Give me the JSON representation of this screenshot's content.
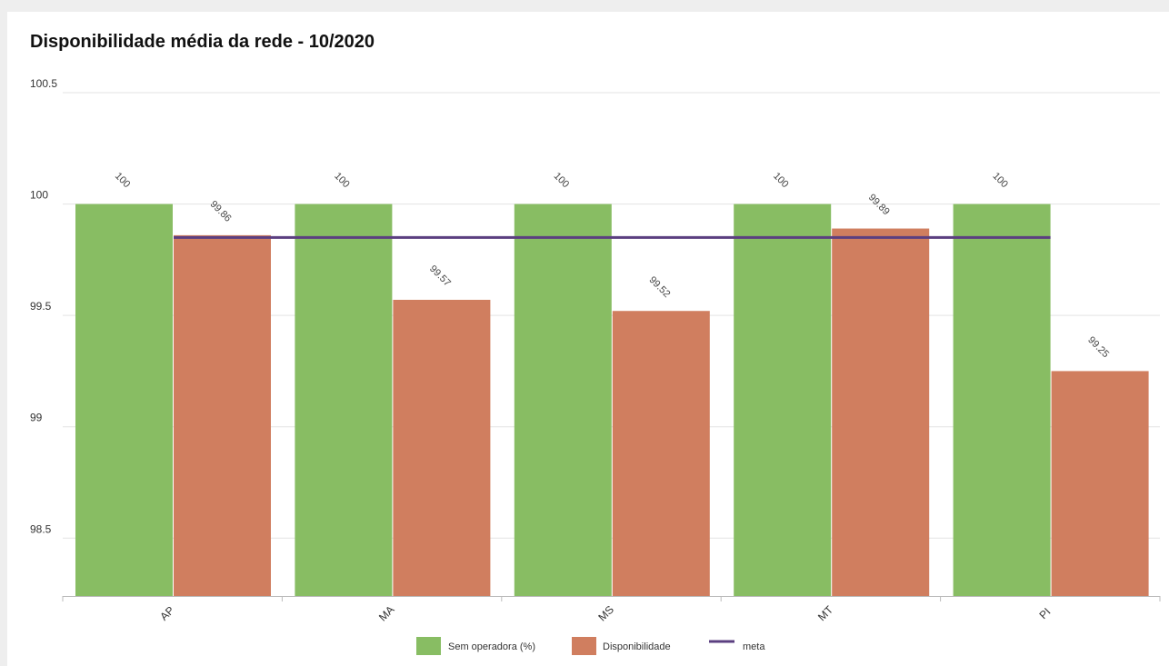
{
  "chart_data": {
    "type": "bar",
    "title": "Disponibilidade média da rede - 10/2020",
    "categories": [
      "AP",
      "MA",
      "MS",
      "MT",
      "PI"
    ],
    "series": [
      {
        "name": "Sem operadora (%)",
        "color": "#88bd63",
        "values": [
          100,
          100,
          100,
          100,
          100
        ]
      },
      {
        "name": "Disponibilidade",
        "color": "#d07e5f",
        "values": [
          99.86,
          99.57,
          99.52,
          99.89,
          99.25
        ]
      }
    ],
    "meta": {
      "name": "meta",
      "color": "#5b3f80",
      "value": 99.85
    },
    "yticks": [
      "100.5",
      "100",
      "99.5",
      "99",
      "98.5"
    ],
    "ylim": [
      98.24,
      100.5
    ],
    "grid": true,
    "legend_position": "bottom-center"
  }
}
